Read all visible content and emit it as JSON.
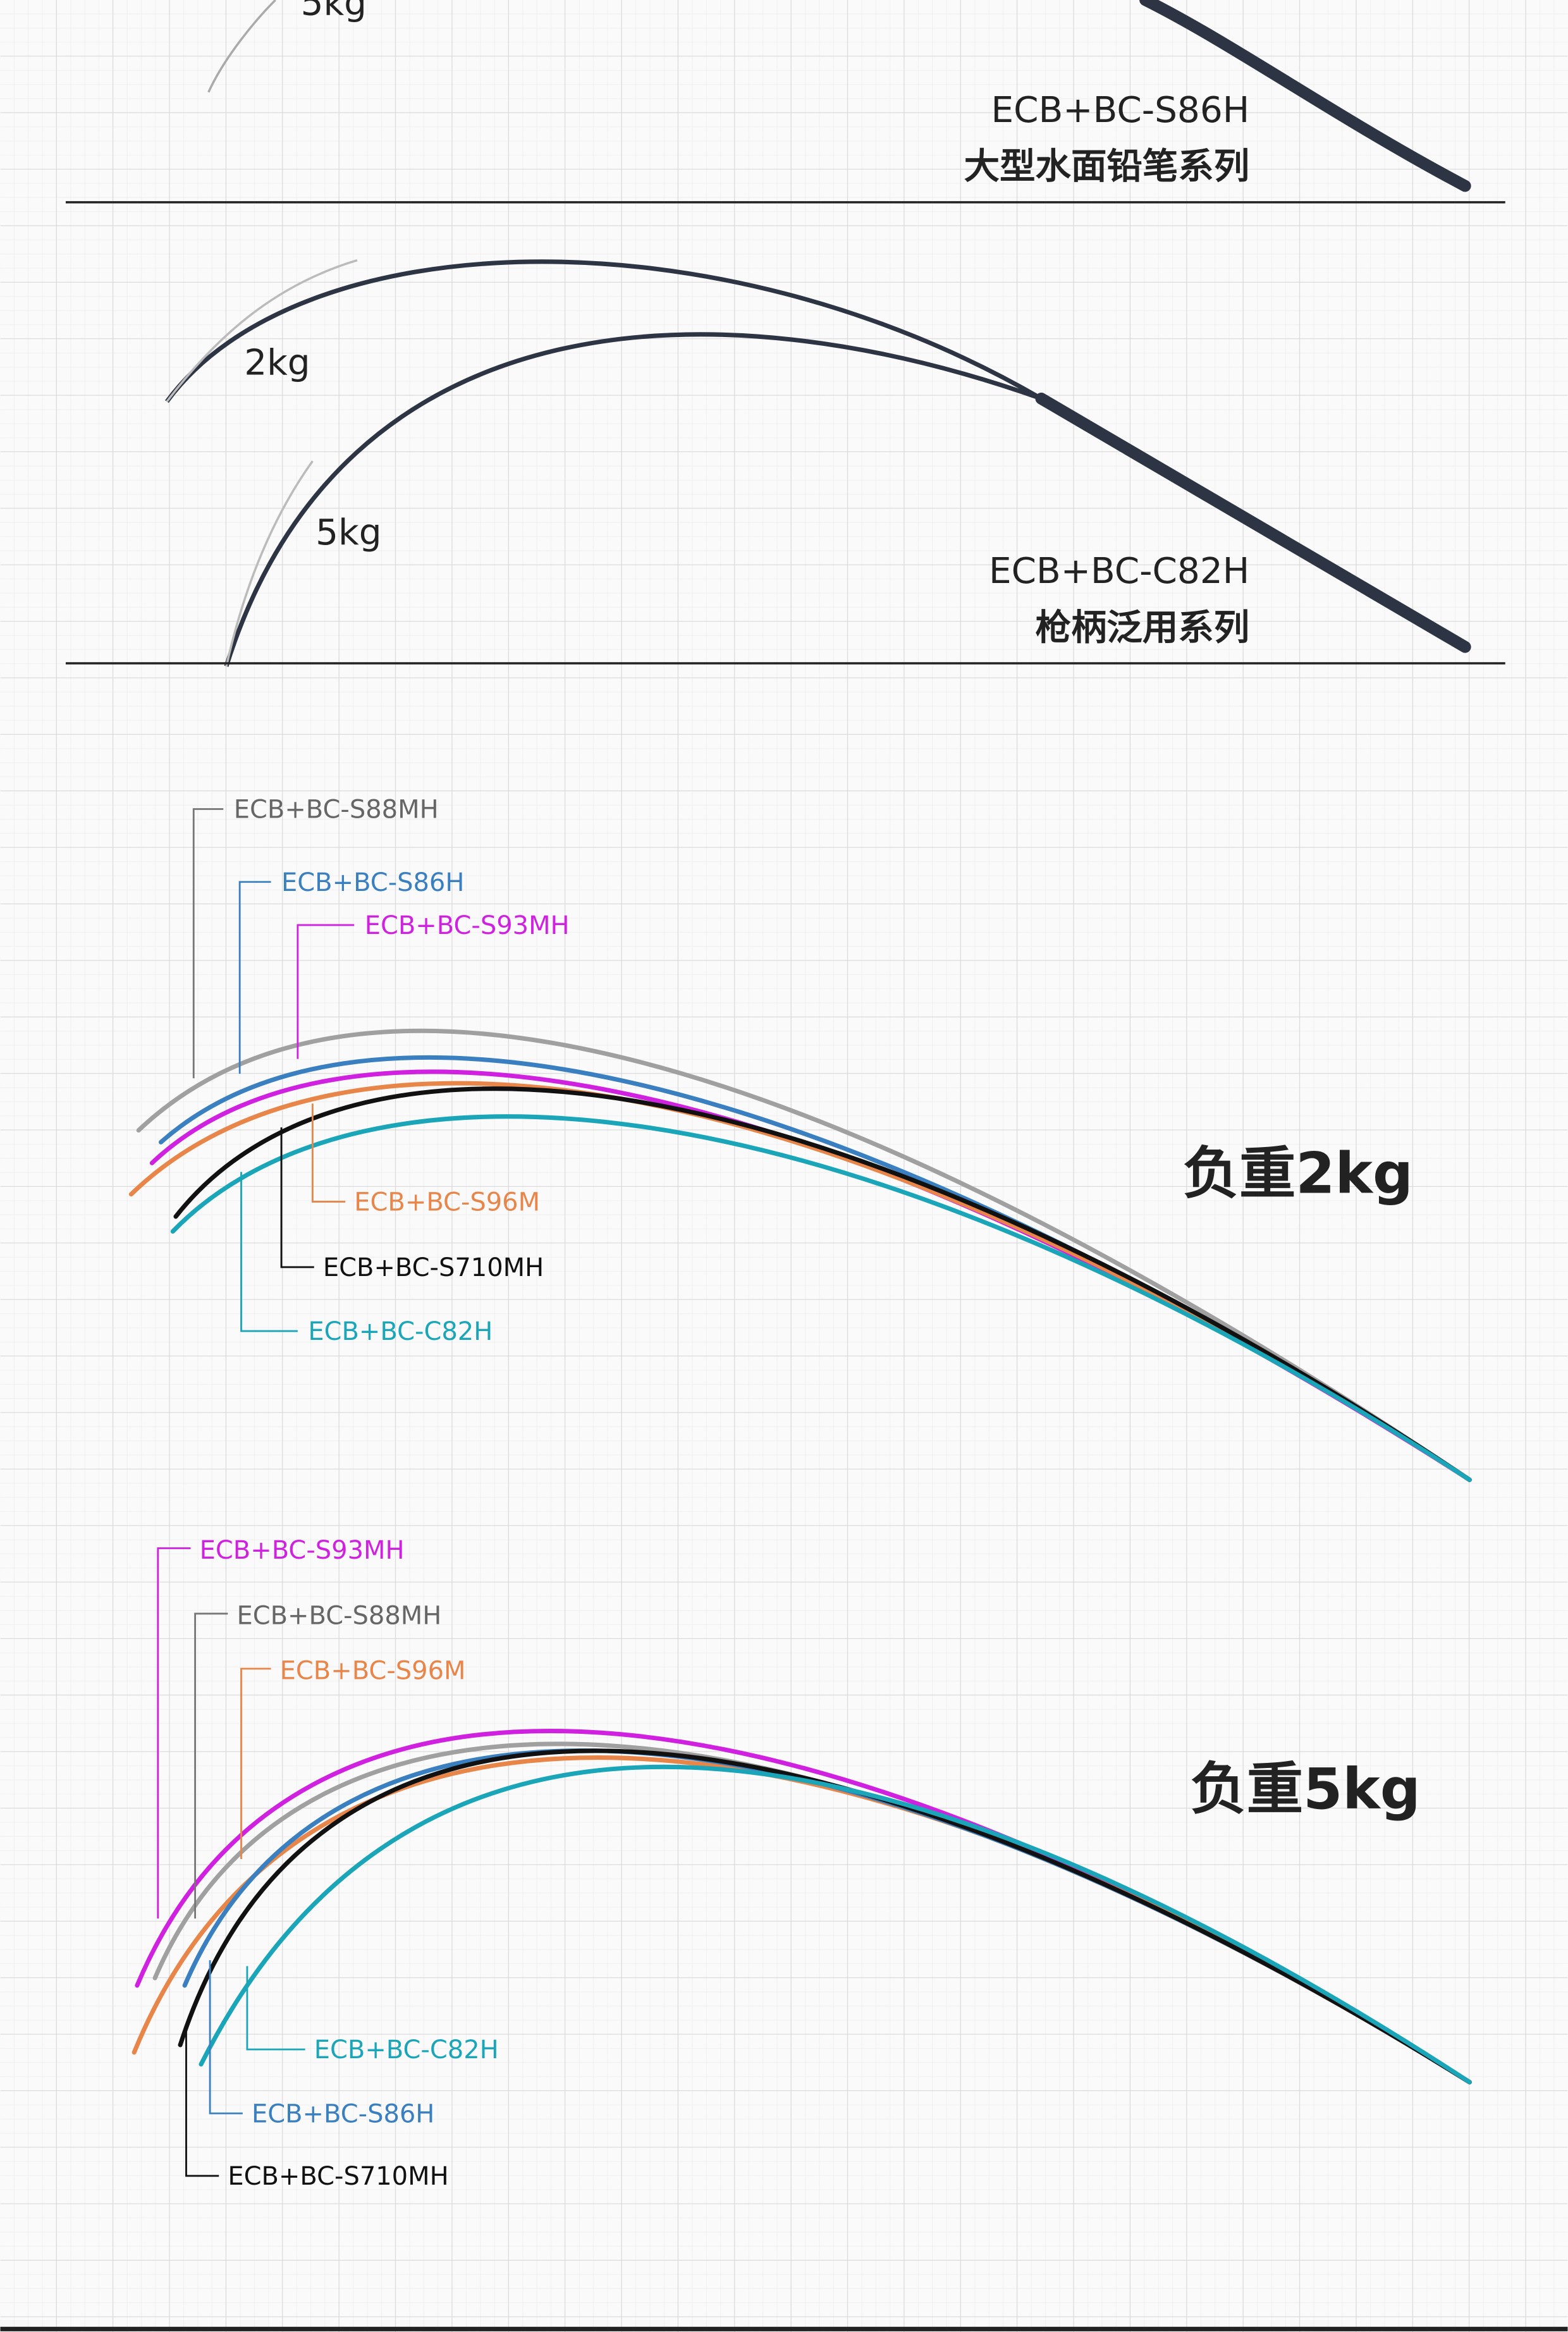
{
  "panels": [
    {
      "load_label": "5kg",
      "model": "ECB+BC-S86H",
      "series": "大型水面铅笔系列"
    },
    {
      "load_labels": [
        "2kg",
        "5kg"
      ],
      "model": "ECB+BC-C82H",
      "series": "枪柄泛用系列"
    }
  ],
  "comparisons": [
    {
      "title": "负重2kg",
      "labels": [
        "ECB+BC-S88MH",
        "ECB+BC-S86H",
        "ECB+BC-S93MH",
        "ECB+BC-S96M",
        "ECB+BC-S710MH",
        "ECB+BC-C82H"
      ]
    },
    {
      "title": "负重5kg",
      "labels": [
        "ECB+BC-S93MH",
        "ECB+BC-S88MH",
        "ECB+BC-S96M",
        "ECB+BC-C82H",
        "ECB+BC-S86H",
        "ECB+BC-S710MH"
      ]
    }
  ]
}
